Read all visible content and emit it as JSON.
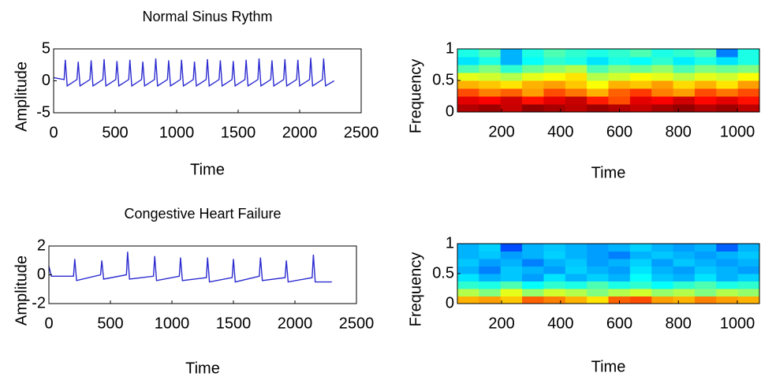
{
  "chart_data": [
    {
      "type": "line",
      "title": "Normal Sinus Rythm",
      "xlabel": "Time",
      "ylabel": "Amplitude",
      "x": [
        0,
        85,
        95,
        110,
        190,
        200,
        215,
        295,
        305,
        320,
        400,
        410,
        425,
        505,
        515,
        530,
        610,
        620,
        635,
        715,
        725,
        740,
        820,
        830,
        845,
        925,
        935,
        950,
        1030,
        1040,
        1055,
        1135,
        1145,
        1160,
        1240,
        1250,
        1265,
        1345,
        1355,
        1370,
        1450,
        1460,
        1475,
        1555,
        1565,
        1580,
        1660,
        1670,
        1685,
        1765,
        1775,
        1790,
        1870,
        1880,
        1895,
        1975,
        1985,
        2000,
        2080,
        2090,
        2105,
        2185,
        2195,
        2210,
        2280
      ],
      "series": [
        {
          "color": "#2b2bd0",
          "values": [
            0.5,
            0.2,
            3.3,
            -0.8,
            0.2,
            3.0,
            -0.8,
            0.2,
            3.2,
            -0.8,
            0.2,
            3.4,
            -0.8,
            0.2,
            3.1,
            -0.8,
            0.2,
            3.3,
            -0.8,
            0.2,
            3.0,
            -0.8,
            0.2,
            3.5,
            -0.8,
            0.2,
            3.2,
            -0.8,
            0.2,
            3.3,
            -0.8,
            0.2,
            3.0,
            -0.8,
            0.2,
            3.4,
            -0.8,
            0.2,
            3.2,
            -0.8,
            0.2,
            3.1,
            -0.8,
            0.2,
            3.3,
            -0.8,
            0.2,
            3.5,
            -0.8,
            0.2,
            3.2,
            -0.8,
            0.2,
            3.4,
            -0.8,
            0.2,
            3.3,
            -0.8,
            0.2,
            3.6,
            -0.8,
            0.2,
            3.5,
            -0.8,
            0
          ]
        }
      ],
      "xlim": [
        0,
        2500
      ],
      "ylim": [
        -5,
        5
      ],
      "xticks": [
        0,
        500,
        1000,
        1500,
        2000,
        2500
      ],
      "yticks": [
        -5,
        0,
        5
      ]
    },
    {
      "type": "heatmap",
      "xlabel": "Time",
      "ylabel": "Frequency",
      "colormap": "jet",
      "xlim": [
        50,
        1075
      ],
      "ylim": [
        0,
        1
      ],
      "xticks": [
        200,
        400,
        600,
        800,
        1000
      ],
      "yticks": [
        0,
        0.5,
        1
      ],
      "z": [
        [
          0.95,
          0.97,
          0.93,
          0.98,
          0.96,
          0.94,
          0.97,
          0.95,
          0.93,
          0.96,
          0.98,
          0.95,
          0.97,
          0.94
        ],
        [
          0.9,
          0.88,
          0.92,
          0.86,
          0.9,
          0.93,
          0.85,
          0.8,
          0.9,
          0.88,
          0.92,
          0.87,
          0.9,
          0.86
        ],
        [
          0.8,
          0.75,
          0.78,
          0.72,
          0.8,
          0.76,
          0.7,
          0.78,
          0.82,
          0.75,
          0.72,
          0.8,
          0.76,
          0.8
        ],
        [
          0.7,
          0.68,
          0.65,
          0.7,
          0.72,
          0.68,
          0.62,
          0.7,
          0.68,
          0.72,
          0.66,
          0.7,
          0.65,
          0.72
        ],
        [
          0.6,
          0.58,
          0.55,
          0.6,
          0.62,
          0.65,
          0.55,
          0.58,
          0.62,
          0.6,
          0.56,
          0.6,
          0.58,
          0.62
        ],
        [
          0.45,
          0.5,
          0.42,
          0.48,
          0.52,
          0.55,
          0.45,
          0.5,
          0.48,
          0.52,
          0.45,
          0.5,
          0.48,
          0.5
        ],
        [
          0.35,
          0.4,
          0.3,
          0.38,
          0.42,
          0.4,
          0.35,
          0.4,
          0.38,
          0.42,
          0.36,
          0.4,
          0.35,
          0.4
        ],
        [
          0.4,
          0.45,
          0.3,
          0.4,
          0.45,
          0.42,
          0.4,
          0.42,
          0.45,
          0.4,
          0.42,
          0.45,
          0.25,
          0.4
        ]
      ]
    },
    {
      "type": "line",
      "title": "Congestive Heart Failure",
      "xlabel": "Time",
      "ylabel": "Amplitude",
      "x": [
        0,
        20,
        200,
        210,
        225,
        420,
        430,
        445,
        630,
        640,
        655,
        850,
        860,
        875,
        1060,
        1070,
        1085,
        1280,
        1290,
        1305,
        1490,
        1500,
        1515,
        1710,
        1720,
        1735,
        1920,
        1930,
        1945,
        2140,
        2150,
        2165,
        2300
      ],
      "series": [
        {
          "color": "#2b2bd0",
          "values": [
            0.6,
            -0.1,
            -0.1,
            1.1,
            -0.4,
            0,
            1.0,
            -0.3,
            0,
            1.6,
            -0.3,
            -0.1,
            1.3,
            -0.4,
            -0.1,
            1.2,
            -0.4,
            -0.2,
            1.2,
            -0.5,
            -0.2,
            1.1,
            -0.5,
            -0.1,
            1.2,
            -0.4,
            -0.2,
            1.0,
            -0.5,
            -0.2,
            1.4,
            -0.5,
            -0.5
          ]
        }
      ],
      "xlim": [
        0,
        2500
      ],
      "ylim": [
        -2,
        2
      ],
      "xticks": [
        0,
        500,
        1000,
        1500,
        2000,
        2500
      ],
      "yticks": [
        -2,
        0,
        2
      ]
    },
    {
      "type": "heatmap",
      "xlabel": "Time",
      "ylabel": "Frequency",
      "colormap": "jet",
      "xlim": [
        50,
        1075
      ],
      "ylim": [
        0,
        1
      ],
      "xticks": [
        200,
        400,
        600,
        800,
        1000
      ],
      "yticks": [
        0,
        0.5,
        1
      ],
      "z": [
        [
          0.7,
          0.72,
          0.68,
          0.78,
          0.75,
          0.7,
          0.65,
          0.78,
          0.8,
          0.72,
          0.7,
          0.75,
          0.72,
          0.7
        ],
        [
          0.55,
          0.5,
          0.6,
          0.52,
          0.58,
          0.55,
          0.5,
          0.55,
          0.58,
          0.52,
          0.55,
          0.5,
          0.55,
          0.52
        ],
        [
          0.42,
          0.4,
          0.45,
          0.38,
          0.42,
          0.4,
          0.45,
          0.4,
          0.42,
          0.38,
          0.42,
          0.45,
          0.4,
          0.42
        ],
        [
          0.35,
          0.3,
          0.32,
          0.28,
          0.35,
          0.3,
          0.33,
          0.3,
          0.38,
          0.32,
          0.3,
          0.35,
          0.3,
          0.33
        ],
        [
          0.3,
          0.25,
          0.32,
          0.3,
          0.28,
          0.33,
          0.3,
          0.28,
          0.35,
          0.3,
          0.28,
          0.32,
          0.3,
          0.28
        ],
        [
          0.32,
          0.28,
          0.3,
          0.25,
          0.3,
          0.32,
          0.28,
          0.3,
          0.33,
          0.28,
          0.32,
          0.3,
          0.28,
          0.3
        ],
        [
          0.3,
          0.32,
          0.28,
          0.3,
          0.33,
          0.3,
          0.28,
          0.25,
          0.3,
          0.32,
          0.3,
          0.28,
          0.3,
          0.32
        ],
        [
          0.3,
          0.33,
          0.2,
          0.3,
          0.32,
          0.3,
          0.28,
          0.3,
          0.33,
          0.3,
          0.28,
          0.3,
          0.22,
          0.3
        ]
      ]
    }
  ]
}
